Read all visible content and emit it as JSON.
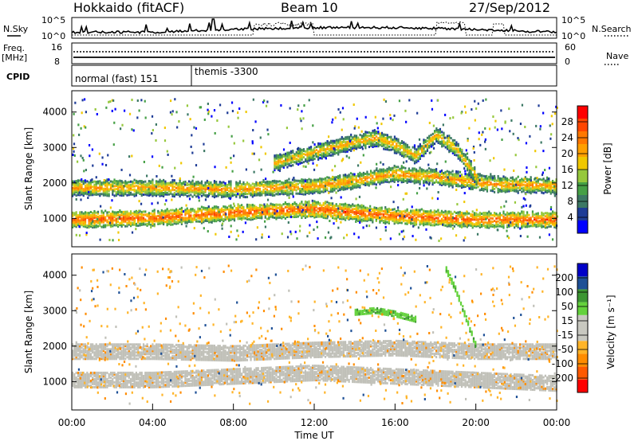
{
  "header": {
    "station": "Hokkaido (fitACF)",
    "beam": "Beam 10",
    "date": "27/Sep/2012"
  },
  "nsky_panel": {
    "left_label": "N.Sky",
    "right_label": "N.Search",
    "left_ticks": [
      "10^5",
      "10^0"
    ],
    "right_ticks": [
      "10^5",
      "10^0"
    ]
  },
  "freq_panel": {
    "left_label_1": "Freq.",
    "left_label_2": "[MHz]",
    "right_label": "Nave",
    "left_ticks": [
      "16",
      "8"
    ],
    "right_ticks": [
      "60",
      "0"
    ]
  },
  "cpid_panel": {
    "label": "CPID",
    "segments": [
      {
        "text": "normal (fast) 151",
        "start_hour": 0
      },
      {
        "text": "themis -3300",
        "start_hour": 6
      }
    ]
  },
  "colors": {
    "power_scale": [
      "#0000ff",
      "#1e3c96",
      "#3c7864",
      "#46a046",
      "#96c83c",
      "#f0c800",
      "#ffa000",
      "#ff7800",
      "#ff4600",
      "#ff0000"
    ],
    "velocity_scale": [
      "#ff0000",
      "#ff5a00",
      "#ff8c00",
      "#ffb428",
      "#c8c8c0",
      "#c8c8c0",
      "#64d23c",
      "#3c9632",
      "#1e5096",
      "#0000c8"
    ],
    "ground_scatter": "#c0c0b8"
  },
  "chart_data": [
    {
      "type": "heatmap",
      "name_panel": "power",
      "ylabel": "Slant Range [km]",
      "yticks": [
        1000,
        2000,
        3000,
        4000
      ],
      "ylim": [
        200,
        4600
      ],
      "xlim": [
        0,
        24
      ],
      "colorbar": {
        "title": "Power [dB]",
        "tick_labels": [
          "4",
          "8",
          "12",
          "16",
          "20",
          "24",
          "28"
        ],
        "range": [
          0,
          32
        ]
      },
      "echo_bands": [
        {
          "hours": [
            0,
            4,
            8,
            12,
            14,
            16,
            20,
            24
          ],
          "range_km": [
            1000,
            1050,
            1200,
            1300,
            1200,
            1100,
            1000,
            1000
          ],
          "power_db": 28
        },
        {
          "hours": [
            0,
            4,
            8,
            12,
            14,
            16,
            18,
            21,
            24
          ],
          "range_km": [
            1900,
            1900,
            1850,
            1950,
            2100,
            2300,
            2200,
            2000,
            1950
          ],
          "power_db": 24
        },
        {
          "hours": [
            10,
            12,
            14,
            15,
            16,
            17,
            18,
            19,
            20
          ],
          "range_km": [
            2600,
            2900,
            3200,
            3300,
            3100,
            2800,
            3400,
            3000,
            2200
          ],
          "power_db": 22
        }
      ]
    },
    {
      "type": "heatmap",
      "name_panel": "velocity",
      "ylabel": "Slant Range [km]",
      "xlabel": "Time UT",
      "yticks": [
        1000,
        2000,
        3000,
        4000
      ],
      "ylim": [
        200,
        4600
      ],
      "xlim": [
        0,
        24
      ],
      "xtick_labels": [
        "00:00",
        "04:00",
        "08:00",
        "12:00",
        "16:00",
        "20:00",
        "00:00"
      ],
      "colorbar": {
        "title": "Velocity [m s⁻¹]",
        "tick_labels": [
          "-200",
          "-100",
          "-50",
          "-15",
          "15",
          "50",
          "100",
          "200"
        ],
        "range": [
          -250,
          250
        ]
      },
      "echo_bands": [
        {
          "hours": [
            0,
            4,
            8,
            12,
            16,
            20,
            24
          ],
          "range_km": [
            1100,
            1100,
            1200,
            1300,
            1200,
            1100,
            1000
          ],
          "velocity": 0
        },
        {
          "hours": [
            0,
            4,
            8,
            12,
            16,
            20,
            24
          ],
          "range_km": [
            1900,
            1900,
            1850,
            1950,
            2000,
            1900,
            1900
          ],
          "velocity": 0
        },
        {
          "hours": [
            14,
            15,
            16,
            17
          ],
          "range_km": [
            3000,
            3050,
            2950,
            2800
          ],
          "velocity": 30
        },
        {
          "hours": [
            18.5,
            19,
            19.5,
            20
          ],
          "range_km": [
            4200,
            3600,
            2800,
            2000
          ],
          "velocity": 30
        }
      ]
    }
  ]
}
